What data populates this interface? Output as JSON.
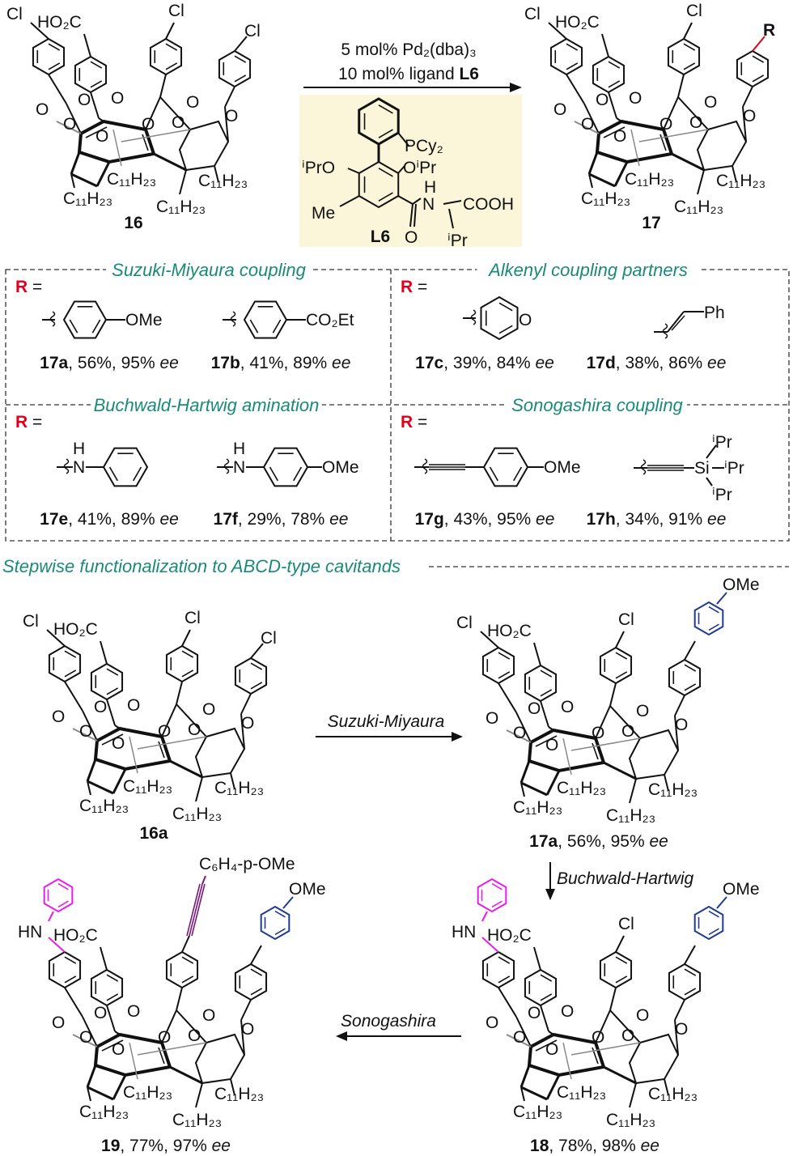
{
  "colors": {
    "accent_title": "#1a8a78",
    "r_group": "#e0001b",
    "methoxyphenyl": "#1f3a93",
    "aniline": "#e61ee6",
    "alkyne": "#7b1a7b",
    "gray": "#888888",
    "ligand_box": "#fbf6d9"
  },
  "common": {
    "oxygen": "O",
    "alkyl": "C₁₁H₂₃",
    "chloro": "Cl",
    "acid": "HO₂C"
  },
  "top_reaction": {
    "reagent_line1": "5 mol% Pd₂(dba)₃",
    "reagent_line2": "10 mol% ligand ",
    "reagent_ligand": "L6",
    "ligand": {
      "pcy2": "PCy₂",
      "ipro": "ⁱPrO",
      "oipr": "OⁱPr",
      "me": "Me",
      "h": "H",
      "n": "N",
      "cooh": "COOH",
      "o": "O",
      "ipr": "ⁱPr",
      "name": "L6"
    },
    "start_compound": "16",
    "product_compound": "17",
    "r_label": "R"
  },
  "boxes": [
    {
      "title": "Suzuki-Miyaura coupling",
      "r": "R",
      "eq": " =",
      "entries": [
        {
          "sub": [
            "OMe"
          ],
          "id": "17a",
          "rest": ", 56%, 95% ",
          "ee": "ee"
        },
        {
          "sub": [
            "CO₂Et"
          ],
          "id": "17b",
          "rest": ", 41%, 89% ",
          "ee": "ee"
        }
      ]
    },
    {
      "title": "Alkenyl coupling partners",
      "r": "R",
      "eq": " =",
      "entries": [
        {
          "sub": [
            "O"
          ],
          "id": "17c",
          "rest": ", 39%, 84% ",
          "ee": "ee"
        },
        {
          "sub": [
            "Ph"
          ],
          "id": "17d",
          "rest": ", 38%, 86% ",
          "ee": "ee"
        }
      ]
    },
    {
      "title": "Buchwald-Hartwig amination",
      "r": "R",
      "eq": " =",
      "entries": [
        {
          "sub": [
            "H",
            "N"
          ],
          "id": "17e",
          "rest": ", 41%, 89% ",
          "ee": "ee"
        },
        {
          "sub": [
            "H",
            "N",
            "OMe"
          ],
          "id": "17f",
          "rest": ", 29%, 78% ",
          "ee": "ee"
        }
      ]
    },
    {
      "title": "Sonogashira coupling",
      "r": "R",
      "eq": " =",
      "entries": [
        {
          "sub": [
            "OMe"
          ],
          "id": "17g",
          "rest": ", 43%, 95% ",
          "ee": "ee"
        },
        {
          "sub": [
            "Si",
            "ⁱPr",
            "ⁱPr",
            "ⁱPr"
          ],
          "id": "17h",
          "rest": ", 34%, 91% ",
          "ee": "ee"
        }
      ]
    }
  ],
  "stepwise": {
    "title": "Stepwise functionalization to ABCD-type cavitands",
    "arrows": {
      "suzuki": "Suzuki-Miyaura",
      "buchwald": "Buchwald-Hartwig",
      "sonogashira": "Sonogashira"
    },
    "ome": "OMe",
    "hn": "HN",
    "alkyne_label": "C₆H₄-p-OMe",
    "compounds": [
      {
        "id": "16a",
        "rest": "",
        "ee": ""
      },
      {
        "id": "17a",
        "rest": ", 56%, 95% ",
        "ee": "ee"
      },
      {
        "id": "18",
        "rest": ", 78%, 98% ",
        "ee": "ee"
      },
      {
        "id": "19",
        "rest": ", 77%, 97% ",
        "ee": "ee"
      }
    ]
  }
}
